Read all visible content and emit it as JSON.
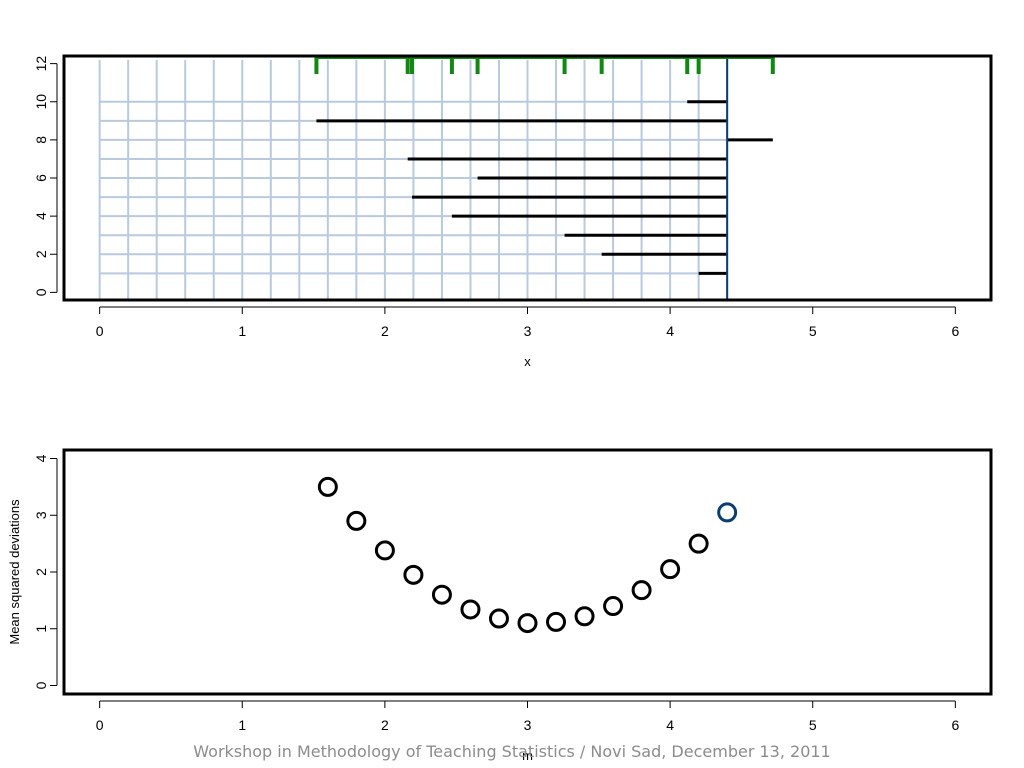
{
  "footer": "Workshop in Methodology of Teaching Statistics / Novi Sad, December 13, 2011",
  "colors": {
    "data": "#000000",
    "highlight": "#0b3d73",
    "rug": "#118811",
    "grid": "#b9c9de"
  },
  "chart_data": [
    {
      "type": "segments",
      "xlabel": "x",
      "ylabel": "",
      "xlim": [
        -0.25,
        6.25
      ],
      "ylim": [
        -0.4,
        12.4
      ],
      "xticks": [
        0,
        1,
        2,
        3,
        4,
        5,
        6
      ],
      "yticks": [
        0,
        2,
        4,
        6,
        8,
        10,
        12
      ],
      "reference_x": 4.4,
      "observations": [
        4.2,
        3.52,
        3.26,
        2.47,
        2.19,
        2.65,
        2.16,
        4.72,
        1.52,
        4.12
      ],
      "rug_values": [
        1.52,
        2.16,
        2.19,
        2.47,
        2.65,
        3.26,
        3.52,
        4.12,
        4.2,
        4.72
      ],
      "grid": true
    },
    {
      "type": "scatter",
      "xlabel": "m",
      "ylabel": "Mean squared deviations",
      "xlim": [
        -0.25,
        6.25
      ],
      "ylim": [
        -0.15,
        4.15
      ],
      "xticks": [
        0,
        1,
        2,
        3,
        4,
        5,
        6
      ],
      "yticks": [
        0,
        1,
        2,
        3,
        4
      ],
      "x": [
        1.6,
        1.8,
        2.0,
        2.2,
        2.4,
        2.6,
        2.8,
        3.0,
        3.2,
        3.4,
        3.6,
        3.8,
        4.0,
        4.2
      ],
      "y": [
        3.5,
        2.9,
        2.38,
        1.95,
        1.6,
        1.34,
        1.18,
        1.1,
        1.12,
        1.22,
        1.4,
        1.68,
        2.05,
        2.5
      ],
      "highlight": {
        "x": 4.4,
        "y": 3.05
      }
    }
  ]
}
